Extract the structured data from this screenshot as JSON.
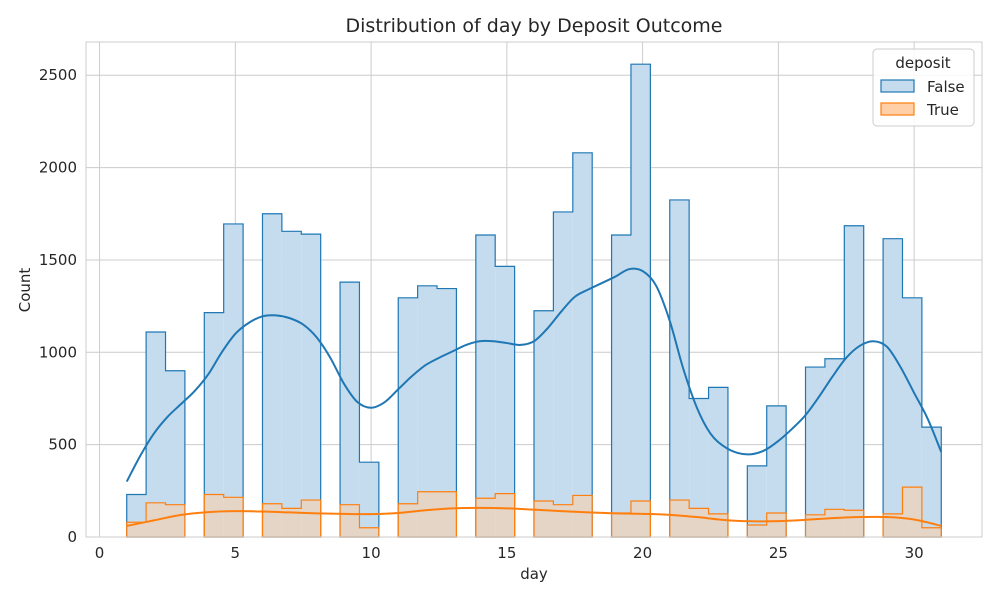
{
  "chart_data": {
    "type": "histogram",
    "title": "Distribution of day by Deposit Outcome",
    "xlabel": "day",
    "ylabel": "Count",
    "xlim": [
      -0.5,
      32.5
    ],
    "ylim": [
      0,
      2680
    ],
    "xticks": [
      0,
      5,
      10,
      15,
      20,
      25,
      30
    ],
    "yticks": [
      0,
      500,
      1000,
      1500,
      2000,
      2500
    ],
    "grid": true,
    "legend": {
      "title": "deposit",
      "placement": "top-right"
    },
    "bin_edges": [
      1.0,
      1.714,
      2.429,
      3.143,
      3.857,
      4.571,
      5.286,
      6.0,
      6.714,
      7.429,
      8.143,
      8.857,
      9.571,
      10.286,
      11.0,
      11.714,
      12.429,
      13.143,
      13.857,
      14.571,
      15.286,
      16.0,
      16.714,
      17.429,
      18.143,
      18.857,
      19.571,
      20.286,
      21.0,
      21.714,
      22.429,
      23.143,
      23.857,
      24.571,
      25.286,
      26.0,
      26.714,
      27.429,
      28.143,
      28.857,
      29.571,
      30.286,
      31.0
    ],
    "series": [
      {
        "name": "False",
        "color": "#1f77b4",
        "fill": "#c5dcee",
        "counts": [
          230,
          1110,
          900,
          0,
          1215,
          1695,
          0,
          1750,
          1655,
          1640,
          0,
          1380,
          405,
          0,
          1295,
          1360,
          1345,
          0,
          1635,
          1465,
          0,
          1225,
          1760,
          2080,
          0,
          1635,
          2560,
          0,
          1825,
          750,
          810,
          0,
          385,
          710,
          0,
          920,
          965,
          1685,
          0,
          1615,
          1295,
          595
        ],
        "kde": [
          [
            1.0,
            300
          ],
          [
            1.5,
            440
          ],
          [
            2.0,
            560
          ],
          [
            2.5,
            650
          ],
          [
            3.0,
            720
          ],
          [
            3.5,
            790
          ],
          [
            4.0,
            880
          ],
          [
            4.5,
            1000
          ],
          [
            5.0,
            1100
          ],
          [
            5.5,
            1160
          ],
          [
            6.0,
            1195
          ],
          [
            6.5,
            1200
          ],
          [
            7.0,
            1185
          ],
          [
            7.5,
            1150
          ],
          [
            8.0,
            1080
          ],
          [
            8.5,
            970
          ],
          [
            9.0,
            830
          ],
          [
            9.5,
            730
          ],
          [
            10.0,
            700
          ],
          [
            10.5,
            730
          ],
          [
            11.0,
            800
          ],
          [
            11.5,
            870
          ],
          [
            12.0,
            930
          ],
          [
            12.5,
            970
          ],
          [
            13.0,
            1005
          ],
          [
            13.5,
            1040
          ],
          [
            14.0,
            1060
          ],
          [
            14.5,
            1060
          ],
          [
            15.0,
            1050
          ],
          [
            15.5,
            1040
          ],
          [
            16.0,
            1060
          ],
          [
            16.5,
            1130
          ],
          [
            17.0,
            1220
          ],
          [
            17.5,
            1300
          ],
          [
            18.0,
            1340
          ],
          [
            18.5,
            1375
          ],
          [
            19.0,
            1410
          ],
          [
            19.5,
            1450
          ],
          [
            20.0,
            1440
          ],
          [
            20.5,
            1360
          ],
          [
            21.0,
            1170
          ],
          [
            21.5,
            910
          ],
          [
            22.0,
            700
          ],
          [
            22.5,
            560
          ],
          [
            23.0,
            490
          ],
          [
            23.5,
            455
          ],
          [
            24.0,
            448
          ],
          [
            24.5,
            470
          ],
          [
            25.0,
            520
          ],
          [
            25.5,
            585
          ],
          [
            26.0,
            660
          ],
          [
            26.5,
            760
          ],
          [
            27.0,
            870
          ],
          [
            27.5,
            970
          ],
          [
            28.0,
            1035
          ],
          [
            28.5,
            1060
          ],
          [
            29.0,
            1030
          ],
          [
            29.5,
            920
          ],
          [
            30.0,
            780
          ],
          [
            30.5,
            640
          ],
          [
            31.0,
            460
          ]
        ]
      },
      {
        "name": "True",
        "color": "#ff7f0e",
        "fill": "#ffd0a8",
        "counts": [
          80,
          185,
          175,
          0,
          230,
          215,
          0,
          180,
          155,
          200,
          0,
          175,
          50,
          0,
          180,
          245,
          245,
          0,
          210,
          235,
          0,
          195,
          175,
          225,
          0,
          130,
          195,
          0,
          200,
          155,
          125,
          0,
          65,
          130,
          0,
          120,
          150,
          145,
          0,
          125,
          270,
          50
        ],
        "kde": [
          [
            1.0,
            60
          ],
          [
            2.0,
            90
          ],
          [
            3.0,
            120
          ],
          [
            4.0,
            135
          ],
          [
            5.0,
            140
          ],
          [
            6.0,
            138
          ],
          [
            7.0,
            133
          ],
          [
            8.0,
            128
          ],
          [
            9.0,
            125
          ],
          [
            10.0,
            124
          ],
          [
            11.0,
            130
          ],
          [
            12.0,
            145
          ],
          [
            13.0,
            155
          ],
          [
            14.0,
            158
          ],
          [
            15.0,
            155
          ],
          [
            16.0,
            148
          ],
          [
            17.0,
            140
          ],
          [
            18.0,
            133
          ],
          [
            19.0,
            128
          ],
          [
            20.0,
            125
          ],
          [
            21.0,
            120
          ],
          [
            22.0,
            108
          ],
          [
            23.0,
            92
          ],
          [
            24.0,
            85
          ],
          [
            25.0,
            86
          ],
          [
            26.0,
            93
          ],
          [
            27.0,
            102
          ],
          [
            28.0,
            108
          ],
          [
            29.0,
            108
          ],
          [
            30.0,
            95
          ],
          [
            31.0,
            60
          ]
        ]
      }
    ]
  }
}
